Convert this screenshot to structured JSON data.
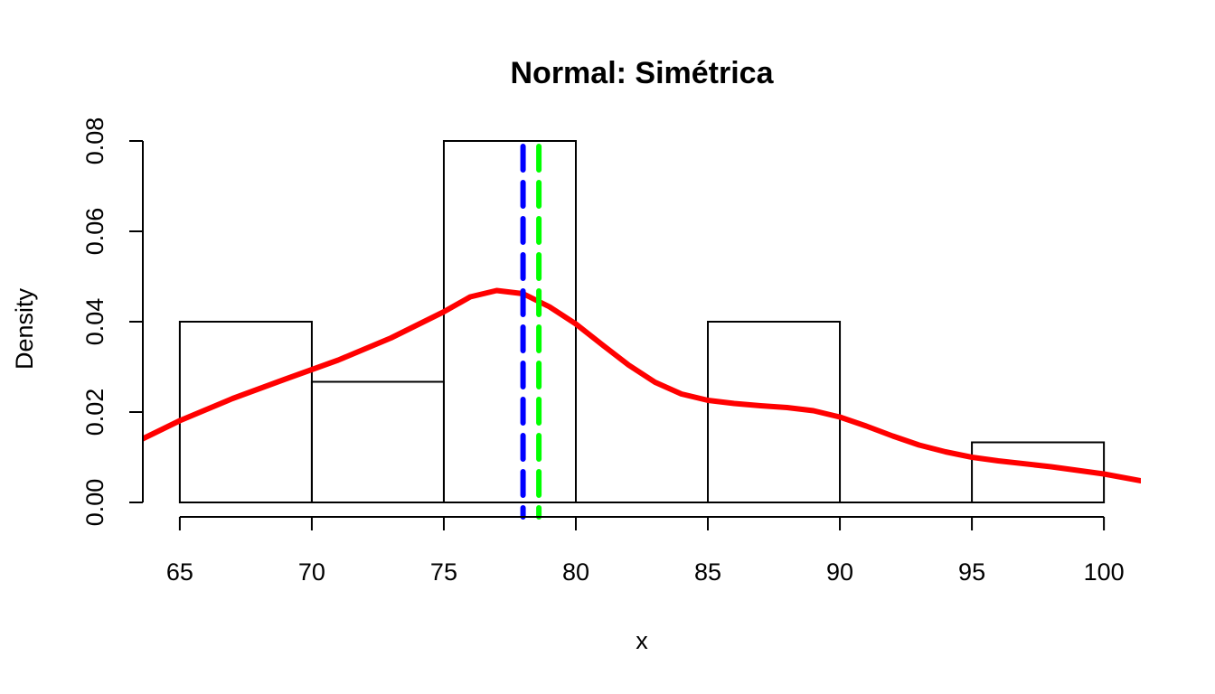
{
  "chart_data": {
    "type": "histogram",
    "title": "Normal: Simétrica",
    "xlabel": "x",
    "ylabel": "Density",
    "xlim": [
      63.6,
      101.4
    ],
    "ylim": [
      0,
      0.082
    ],
    "x_ticks": [
      65,
      70,
      75,
      80,
      85,
      90,
      95,
      100
    ],
    "x_tick_labels": [
      "65",
      "70",
      "75",
      "80",
      "85",
      "90",
      "95",
      "100"
    ],
    "y_ticks": [
      0,
      0.02,
      0.04,
      0.06,
      0.08
    ],
    "y_tick_labels": [
      "0.00",
      "0.02",
      "0.04",
      "0.06",
      "0.08"
    ],
    "grid": false,
    "bins": [
      {
        "start": 65,
        "end": 70,
        "density": 0.04
      },
      {
        "start": 70,
        "end": 75,
        "density": 0.0267
      },
      {
        "start": 75,
        "end": 80,
        "density": 0.08
      },
      {
        "start": 80,
        "end": 85,
        "density": 0.0
      },
      {
        "start": 85,
        "end": 90,
        "density": 0.04
      },
      {
        "start": 90,
        "end": 95,
        "density": 0.0
      },
      {
        "start": 95,
        "end": 100,
        "density": 0.0133
      }
    ],
    "density_curve": {
      "color": "#ff0000",
      "points": [
        [
          63.6,
          0.0141
        ],
        [
          65,
          0.0181
        ],
        [
          67,
          0.023
        ],
        [
          69,
          0.0273
        ],
        [
          71,
          0.0315
        ],
        [
          73,
          0.0364
        ],
        [
          75,
          0.0422
        ],
        [
          76,
          0.0455
        ],
        [
          77,
          0.0469
        ],
        [
          78,
          0.0462
        ],
        [
          79,
          0.0433
        ],
        [
          80,
          0.0395
        ],
        [
          81,
          0.0349
        ],
        [
          82,
          0.0304
        ],
        [
          83,
          0.0266
        ],
        [
          84,
          0.024
        ],
        [
          85,
          0.0226
        ],
        [
          86,
          0.0219
        ],
        [
          87,
          0.0214
        ],
        [
          88,
          0.021
        ],
        [
          89,
          0.0203
        ],
        [
          90,
          0.0189
        ],
        [
          91,
          0.0169
        ],
        [
          92,
          0.0147
        ],
        [
          93,
          0.0127
        ],
        [
          94,
          0.0112
        ],
        [
          95,
          0.01
        ],
        [
          96,
          0.0092
        ],
        [
          98,
          0.0079
        ],
        [
          100,
          0.0063
        ],
        [
          101.4,
          0.0048
        ]
      ]
    },
    "vertical_lines": [
      {
        "x": 78.0,
        "color": "#0000ff",
        "style": "dashed"
      },
      {
        "x": 78.6,
        "color": "#00ff00",
        "style": "dashed"
      }
    ]
  }
}
